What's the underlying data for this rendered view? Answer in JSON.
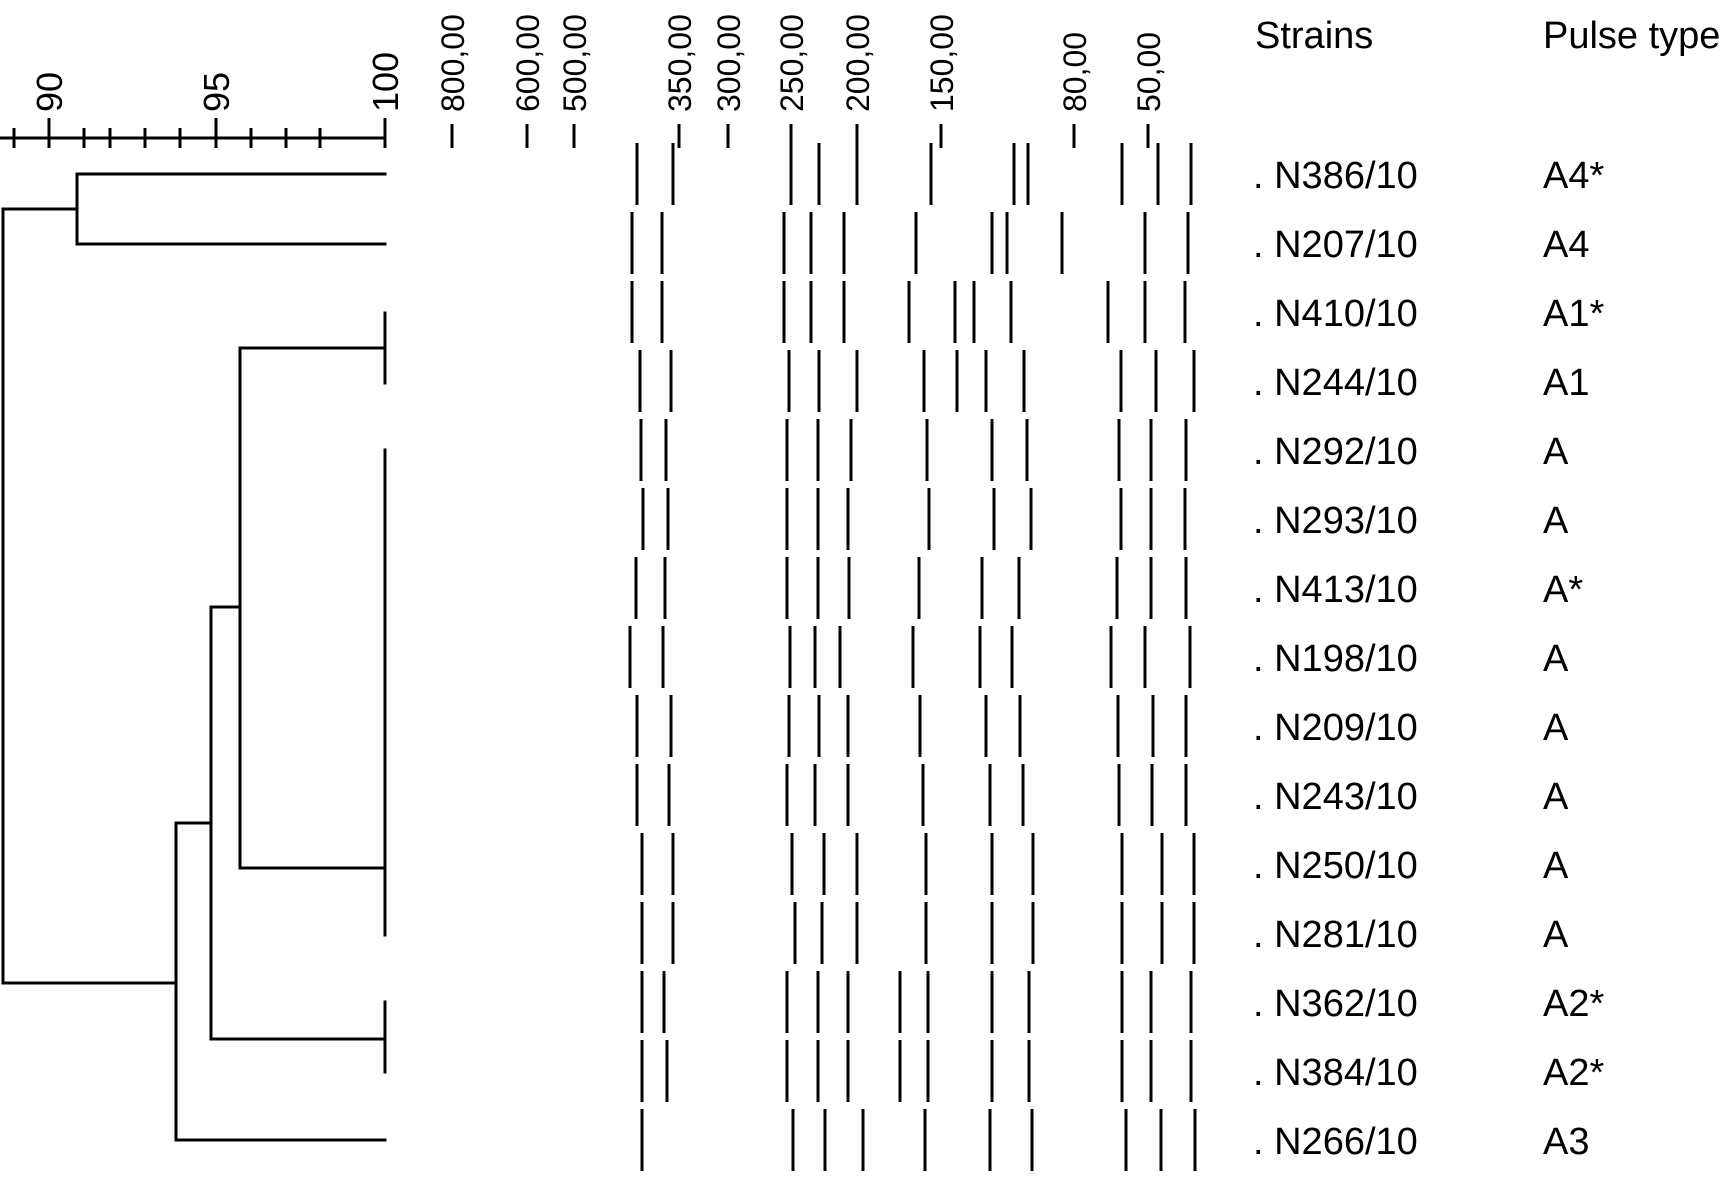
{
  "similarity_scale": {
    "ticks": [
      {
        "value": 90,
        "label": "90"
      },
      {
        "value": 95,
        "label": "95"
      },
      {
        "value": 100,
        "label": "100"
      }
    ],
    "min": 89,
    "max": 100
  },
  "size_marker": {
    "labels": [
      "800,00",
      "600,00",
      "500,00",
      "350,00",
      "300,00",
      "250,00",
      "200,00",
      "150,00",
      "80,00",
      "50,00"
    ]
  },
  "headers": {
    "strains": "Strains",
    "pulse_type": "Pulse type"
  },
  "rows": [
    {
      "strain": ". N386/10",
      "pulse_type": "A4*"
    },
    {
      "strain": ". N207/10",
      "pulse_type": "A4"
    },
    {
      "strain": ". N410/10",
      "pulse_type": "A1*"
    },
    {
      "strain": ". N244/10",
      "pulse_type": "A1"
    },
    {
      "strain": ". N292/10",
      "pulse_type": "A"
    },
    {
      "strain": ". N293/10",
      "pulse_type": "A"
    },
    {
      "strain": ". N413/10",
      "pulse_type": "A*"
    },
    {
      "strain": ". N198/10",
      "pulse_type": "A"
    },
    {
      "strain": ". N209/10",
      "pulse_type": "A"
    },
    {
      "strain": ". N243/10",
      "pulse_type": "A"
    },
    {
      "strain": ". N250/10",
      "pulse_type": "A"
    },
    {
      "strain": ". N281/10",
      "pulse_type": "A"
    },
    {
      "strain": ". N362/10",
      "pulse_type": "A2*"
    },
    {
      "strain": ". N384/10",
      "pulse_type": "A2*"
    },
    {
      "strain": ". N266/10",
      "pulse_type": "A3"
    }
  ],
  "colors": {
    "ink": "#000000",
    "background": "#ffffff"
  }
}
